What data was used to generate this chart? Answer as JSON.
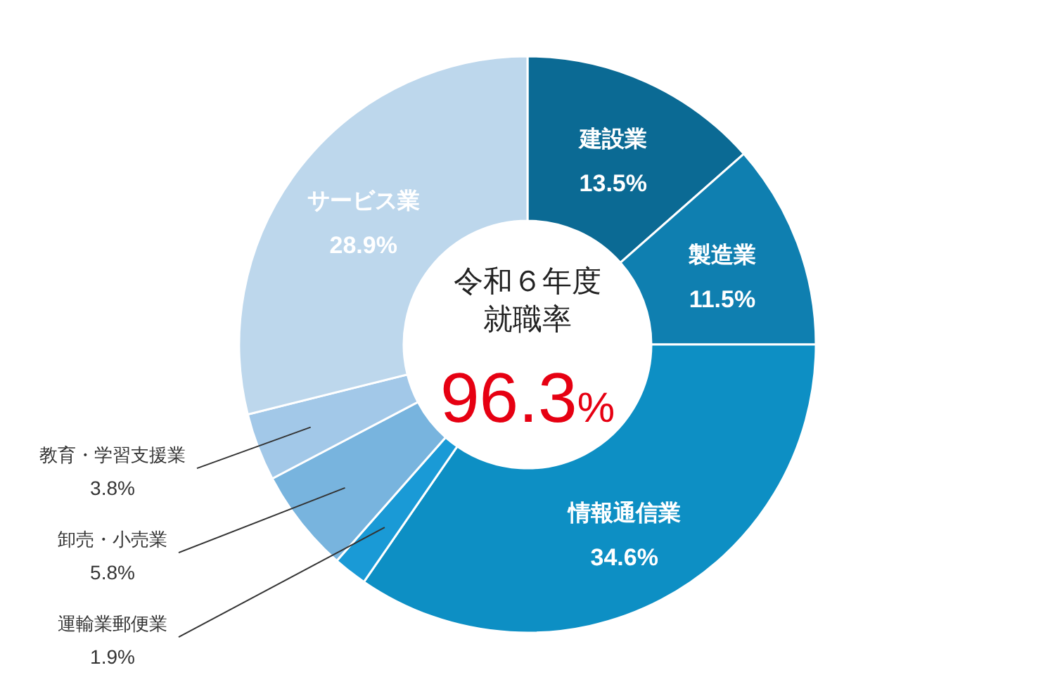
{
  "chart_data": {
    "type": "donut",
    "title": "令和６年度",
    "subtitle": "就職率",
    "annotations": [
      "96.3%"
    ],
    "categories": [
      "建設業",
      "製造業",
      "情報通信業",
      "運輸業郵便業",
      "卸売・小売業",
      "教育・学習支援業",
      "サービス業"
    ],
    "values": [
      13.5,
      11.5,
      34.6,
      1.9,
      5.8,
      3.8,
      28.9
    ],
    "value_labels": [
      "13.5%",
      "11.5%",
      "34.6%",
      "1.9%",
      "5.8%",
      "3.8%",
      "28.9%"
    ],
    "colors": [
      "#0b6a94",
      "#0f7fb0",
      "#0d8fc4",
      "#1a9ad6",
      "#78b4de",
      "#a2c8e8",
      "#bdd7ec"
    ]
  }
}
